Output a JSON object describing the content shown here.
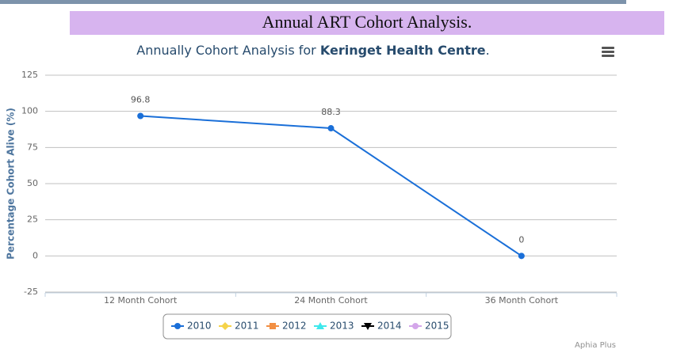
{
  "header": {
    "title": "Annual ART Cohort Analysis."
  },
  "chart_data": {
    "type": "line",
    "title": [
      "Annually Cohort Analysis for ",
      "Keringet Health Centre",
      "."
    ],
    "ylabel": "Percentage Cohort Alive (%)",
    "categories": [
      "12 Month Cohort",
      "24 Month Cohort",
      "36 Month Cohort"
    ],
    "series": [
      {
        "name": "2010",
        "color": "#1a6fd8",
        "marker": "circle",
        "values": [
          96.8,
          88.3,
          0
        ]
      },
      {
        "name": "2011",
        "color": "#f5d34a",
        "marker": "diamond",
        "values": [
          null,
          null,
          null
        ]
      },
      {
        "name": "2012",
        "color": "#f28f43",
        "marker": "square",
        "values": [
          null,
          null,
          null
        ]
      },
      {
        "name": "2013",
        "color": "#3ee8ec",
        "marker": "triangle",
        "values": [
          null,
          null,
          null
        ]
      },
      {
        "name": "2014",
        "color": "#000000",
        "marker": "triangle-down",
        "values": [
          null,
          null,
          null
        ]
      },
      {
        "name": "2015",
        "color": "#d4a6ea",
        "marker": "circle",
        "values": [
          null,
          null,
          null
        ]
      }
    ],
    "ylim": [
      -25,
      125
    ],
    "yticks": [
      -25,
      0,
      25,
      50,
      75,
      100,
      125
    ],
    "grid": true,
    "legend": "bottom",
    "credits": "Aphia Plus"
  }
}
